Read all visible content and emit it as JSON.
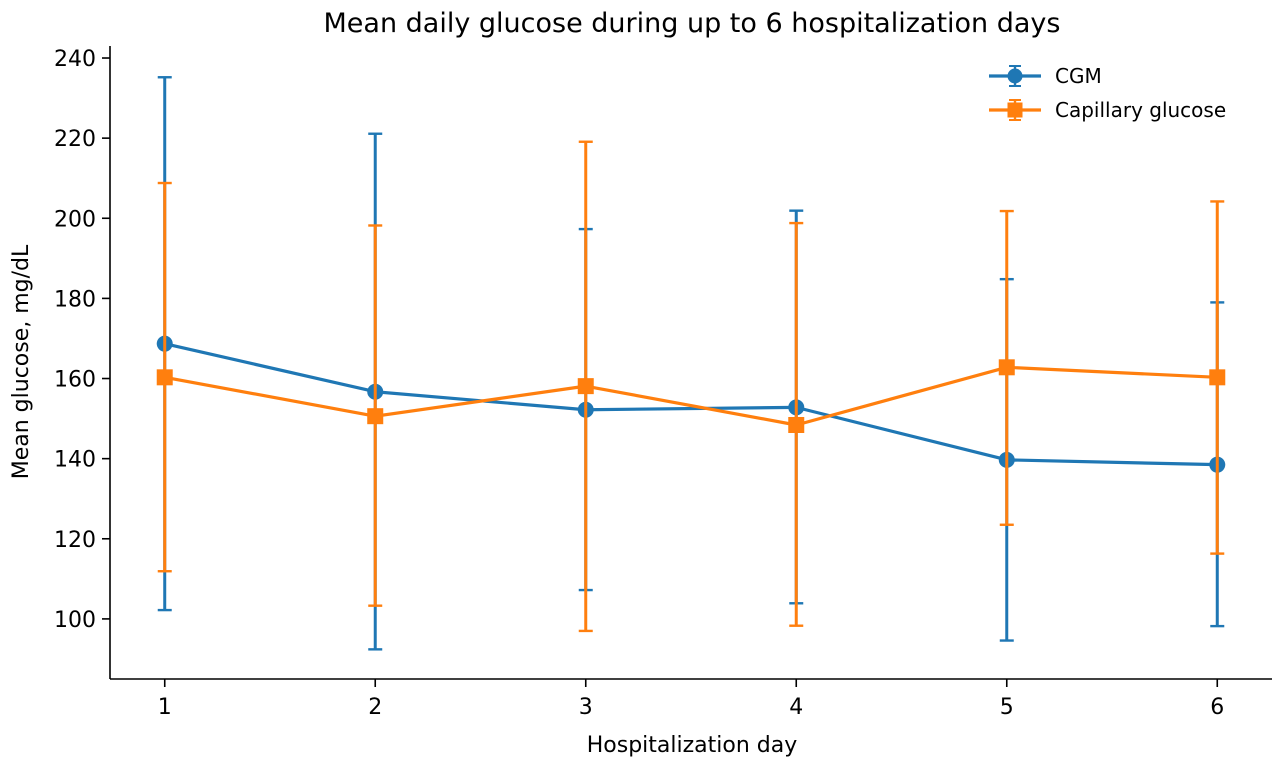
{
  "chart_data": {
    "type": "line",
    "title": "Mean daily glucose during up to 6 hospitalization days",
    "xlabel": "Hospitalization day",
    "ylabel": "Mean glucose, mg/dL",
    "x": [
      1,
      2,
      3,
      4,
      5,
      6
    ],
    "x_tick_labels": [
      "1",
      "2",
      "3",
      "4",
      "5",
      "6"
    ],
    "y_ticks": [
      100,
      120,
      140,
      160,
      180,
      200,
      220,
      240
    ],
    "y_tick_labels": [
      "100",
      "120",
      "140",
      "160",
      "180",
      "200",
      "220",
      "240"
    ],
    "xlim": [
      0.74,
      6.26
    ],
    "ylim": [
      85,
      243
    ],
    "grid": false,
    "legend_position": "top-right",
    "series": [
      {
        "name": "CGM",
        "marker": "circle",
        "color": "#1f77b4",
        "values": [
          168.7,
          156.7,
          152.2,
          152.8,
          139.7,
          138.5
        ],
        "err_low": [
          102.2,
          92.4,
          107.2,
          103.9,
          94.6,
          98.2
        ],
        "err_high": [
          235.2,
          221.1,
          197.3,
          201.9,
          184.8,
          179.0
        ]
      },
      {
        "name": "Capillary glucose",
        "marker": "square",
        "color": "#ff7f0e",
        "values": [
          160.3,
          150.6,
          158.1,
          148.4,
          162.8,
          160.3
        ],
        "err_low": [
          111.9,
          103.3,
          97.0,
          98.3,
          123.5,
          116.3
        ],
        "err_high": [
          208.8,
          198.2,
          219.1,
          198.8,
          201.8,
          204.2
        ]
      }
    ]
  }
}
